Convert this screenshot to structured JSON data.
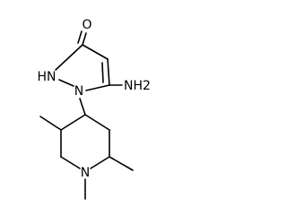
{
  "molecule": {
    "atoms": [
      {
        "label": "O"
      },
      {
        "label": "HN"
      },
      {
        "label": "N"
      },
      {
        "label": "NH2"
      },
      {
        "label": "N"
      }
    ]
  }
}
